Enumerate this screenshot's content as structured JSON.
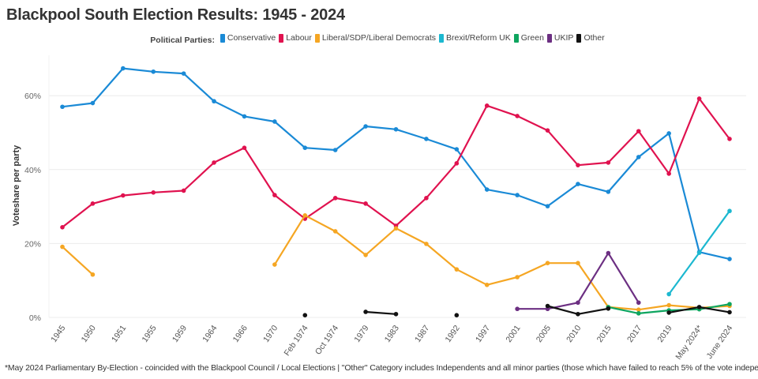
{
  "title": "Blackpool South Election Results: 1945 - 2024",
  "footnote": "*May 2024 Parliamentary By-Election - coincided with the Blackpool Council / Local Elections | \"Other\" Category includes Independents and all minor parties (those which have failed to reach 5% of the vote independently).",
  "chart_data": {
    "type": "line",
    "title": "Blackpool South Election Results: 1945 - 2024",
    "legend_title": "Political Parties:",
    "legend_position": "top",
    "ylabel": "Voteshare per party",
    "xlabel": "",
    "ylim": [
      0,
      70
    ],
    "yticks": [
      0,
      20,
      40,
      60
    ],
    "ytick_labels": [
      "0%",
      "20%",
      "40%",
      "60%"
    ],
    "grid": true,
    "categories": [
      "1945",
      "1950",
      "1951",
      "1955",
      "1959",
      "1964",
      "1966",
      "1970",
      "Feb 1974",
      "Oct 1974",
      "1979",
      "1983",
      "1987",
      "1992",
      "1997",
      "2001",
      "2005",
      "2010",
      "2015",
      "2017",
      "2019",
      "May 2024*",
      "June 2024"
    ],
    "series": [
      {
        "name": "Conservative",
        "color": "#1a8ad6",
        "values": [
          57.0,
          58.0,
          67.4,
          66.5,
          66.0,
          58.5,
          54.4,
          53.0,
          45.9,
          45.3,
          51.7,
          50.9,
          48.3,
          45.5,
          34.6,
          33.1,
          30.1,
          36.1,
          34.0,
          43.4,
          49.8,
          17.7,
          15.8
        ]
      },
      {
        "name": "Labour",
        "color": "#e0124f",
        "values": [
          24.4,
          30.8,
          33.0,
          33.8,
          34.3,
          41.9,
          45.9,
          33.1,
          26.7,
          32.3,
          30.8,
          24.8,
          32.3,
          41.7,
          57.3,
          54.5,
          50.6,
          41.2,
          41.9,
          50.4,
          38.9,
          59.2,
          48.3
        ]
      },
      {
        "name": "Liberal/SDP/Liberal Democrats",
        "color": "#f5a623",
        "values": [
          19.1,
          11.6,
          null,
          null,
          null,
          null,
          null,
          14.3,
          27.6,
          23.3,
          16.9,
          24.1,
          19.9,
          13.0,
          8.8,
          10.9,
          14.7,
          14.7,
          2.8,
          2.1,
          3.3,
          2.6,
          3.1
        ]
      },
      {
        "name": "Brexit/Reform UK",
        "color": "#1cb8d0",
        "values": [
          null,
          null,
          null,
          null,
          null,
          null,
          null,
          null,
          null,
          null,
          null,
          null,
          null,
          null,
          null,
          null,
          null,
          null,
          null,
          null,
          6.3,
          17.5,
          28.8
        ]
      },
      {
        "name": "Green",
        "color": "#0ea55f",
        "values": [
          null,
          null,
          null,
          null,
          null,
          null,
          null,
          null,
          null,
          null,
          null,
          null,
          null,
          null,
          null,
          null,
          null,
          null,
          2.8,
          1.1,
          1.9,
          2.2,
          3.6
        ]
      },
      {
        "name": "UKIP",
        "color": "#6c2f82",
        "values": [
          null,
          null,
          null,
          null,
          null,
          null,
          null,
          null,
          null,
          null,
          null,
          null,
          null,
          null,
          null,
          2.3,
          2.3,
          4.0,
          17.4,
          4.0,
          null,
          null,
          null
        ]
      },
      {
        "name": "Other",
        "color": "#111111",
        "values": [
          null,
          null,
          null,
          null,
          null,
          null,
          null,
          null,
          0.6,
          null,
          1.5,
          0.9,
          null,
          0.6,
          null,
          null,
          3.1,
          0.9,
          2.4,
          null,
          1.3,
          2.8,
          1.4
        ]
      }
    ]
  }
}
